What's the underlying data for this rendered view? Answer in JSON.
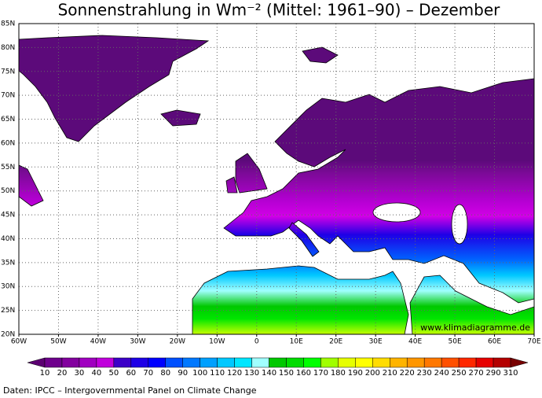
{
  "title": "Sonnenstrahlung in Wm⁻² (Mittel: 1961–90) – Dezember",
  "map": {
    "lon_range": [
      -60,
      70
    ],
    "lat_range": [
      20,
      85
    ],
    "grid": true,
    "lon_ticks": [
      {
        "value": -60,
        "label": "60W"
      },
      {
        "value": -50,
        "label": "50W"
      },
      {
        "value": -40,
        "label": "40W"
      },
      {
        "value": -30,
        "label": "30W"
      },
      {
        "value": -20,
        "label": "20W"
      },
      {
        "value": -10,
        "label": "10W"
      },
      0,
      {
        "value": 10,
        "label": "10E"
      },
      {
        "value": 20,
        "label": "20E"
      },
      {
        "value": 30,
        "label": "30E"
      },
      {
        "value": 40,
        "label": "40E"
      },
      {
        "value": 50,
        "label": "50E"
      },
      {
        "value": 60,
        "label": "60E"
      },
      {
        "value": 70,
        "label": "70E"
      }
    ],
    "lat_ticks": [
      {
        "value": 20,
        "label": "20N"
      },
      {
        "value": 25,
        "label": "25N"
      },
      {
        "value": 30,
        "label": "30N"
      },
      {
        "value": 35,
        "label": "35N"
      },
      {
        "value": 40,
        "label": "40N"
      },
      {
        "value": 45,
        "label": "45N"
      },
      {
        "value": 50,
        "label": "50N"
      },
      {
        "value": 55,
        "label": "55N"
      },
      {
        "value": 60,
        "label": "60N"
      },
      {
        "value": 65,
        "label": "65N"
      },
      {
        "value": 70,
        "label": "70N"
      },
      {
        "value": 75,
        "label": "75N"
      },
      {
        "value": 80,
        "label": "80N"
      },
      {
        "value": 85,
        "label": "85N"
      }
    ]
  },
  "colorbar": {
    "labels": [
      10,
      20,
      30,
      40,
      50,
      60,
      70,
      80,
      90,
      100,
      110,
      120,
      130,
      140,
      150,
      160,
      170,
      180,
      190,
      200,
      210,
      220,
      230,
      240,
      250,
      270,
      290,
      310
    ],
    "colors": [
      "#5c0072",
      "#6e008c",
      "#82009e",
      "#a000c0",
      "#c000dc",
      "#3c00c8",
      "#1e00e6",
      "#0000ff",
      "#0050ff",
      "#0078ff",
      "#00a0ff",
      "#00c8ff",
      "#00e6ff",
      "#a0ffff",
      "#00c800",
      "#00dc00",
      "#00ff00",
      "#a0ff00",
      "#e6ff00",
      "#ffff00",
      "#ffdc00",
      "#ffb400",
      "#ff9600",
      "#ff7800",
      "#ff5000",
      "#ff2800",
      "#e60000",
      "#b40000",
      "#780000"
    ]
  },
  "watermark": "www.klimadiagramme.de",
  "source": "Daten: IPCC – Intergovernmental Panel on Climate Change"
}
